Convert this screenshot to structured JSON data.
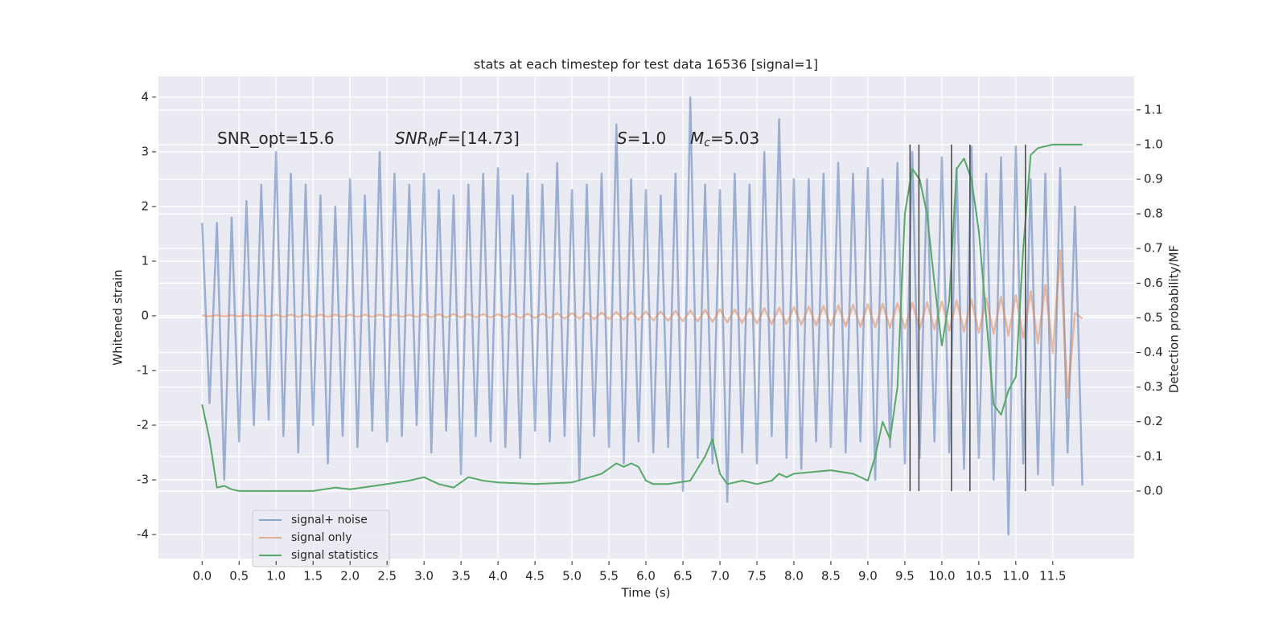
{
  "chart_data": {
    "type": "line",
    "title": "stats at each timestep for test data 16536 [signal=1]",
    "xlabel": "Time (s)",
    "ylabel": "Whitened strain",
    "y2label": "Detection probability/MF",
    "xlim": [
      -0.59,
      12.6
    ],
    "ylim": [
      -4.44,
      4.38
    ],
    "y2lim": [
      -0.195,
      1.197
    ],
    "xticks": [
      {
        "value": 0,
        "label": "0.0"
      },
      0.5,
      {
        "value": 1,
        "label": "1.0"
      },
      1.5,
      {
        "value": 2,
        "label": "2.0"
      },
      2.5,
      {
        "value": 3,
        "label": "3.0"
      },
      3.5,
      {
        "value": 4,
        "label": "4.0"
      },
      4.5,
      {
        "value": 5,
        "label": "5.0"
      },
      5.5,
      {
        "value": 6,
        "label": "6.0"
      },
      6.5,
      {
        "value": 7,
        "label": "7.0"
      },
      7.5,
      {
        "value": 8,
        "label": "8.0"
      },
      8.5,
      {
        "value": 9,
        "label": "9.0"
      },
      9.5,
      {
        "value": 10,
        "label": "10.0"
      },
      10.5,
      {
        "value": 11,
        "label": "11.0"
      },
      11.5
    ],
    "yticks": [
      -4,
      -3,
      -2,
      -1,
      0,
      1,
      2,
      3,
      4
    ],
    "y2ticks": [
      {
        "value": 0,
        "label": "0.0"
      },
      0.1,
      0.2,
      0.3,
      0.4,
      0.5,
      0.6,
      0.7,
      0.8,
      0.9,
      {
        "value": 1,
        "label": "1.0"
      },
      1.1
    ],
    "grid": true,
    "legend": "lower left",
    "x": [
      0,
      0.1,
      0.2,
      0.3,
      0.4,
      0.5,
      0.6,
      0.7,
      0.8,
      0.9,
      1,
      1.1,
      1.2,
      1.3,
      1.4,
      1.5,
      1.6,
      1.7,
      1.8,
      1.9,
      2,
      2.1,
      2.2,
      2.3,
      2.4,
      2.5,
      2.6,
      2.7,
      2.8,
      2.9,
      3,
      3.1,
      3.2,
      3.3,
      3.4,
      3.5,
      3.6,
      3.7,
      3.8,
      3.9,
      4,
      4.1,
      4.2,
      4.3,
      4.4,
      4.5,
      4.6,
      4.7,
      4.8,
      4.9,
      5,
      5.1,
      5.2,
      5.3,
      5.4,
      5.5,
      5.6,
      5.7,
      5.8,
      5.9,
      6,
      6.1,
      6.2,
      6.3,
      6.4,
      6.5,
      6.6,
      6.7,
      6.8,
      6.9,
      7,
      7.1,
      7.2,
      7.3,
      7.4,
      7.5,
      7.6,
      7.7,
      7.8,
      7.9,
      8,
      8.1,
      8.2,
      8.3,
      8.4,
      8.5,
      8.6,
      8.7,
      8.8,
      8.9,
      9,
      9.1,
      9.2,
      9.3,
      9.4,
      9.5,
      9.6,
      9.7,
      9.8,
      9.9,
      10,
      10.1,
      10.2,
      10.3,
      10.4,
      10.5,
      10.6,
      10.7,
      10.8,
      10.9,
      11,
      11.1,
      11.2,
      11.3,
      11.4,
      11.5,
      11.6,
      11.7,
      11.8,
      11.9
    ],
    "series": [
      {
        "name": "signal+ noise",
        "color": "#4c72b0",
        "values": [
          1.7,
          -1.6,
          1.7,
          -3.0,
          1.8,
          -2.3,
          2.1,
          -2.0,
          2.4,
          -1.9,
          3.0,
          -2.2,
          2.6,
          -2.5,
          2.4,
          -2.0,
          2.2,
          -2.7,
          2.0,
          -2.2,
          2.5,
          -2.4,
          2.2,
          -2.1,
          3.0,
          -2.3,
          2.6,
          -2.2,
          2.4,
          -2.0,
          2.6,
          -2.5,
          2.3,
          -2.1,
          2.2,
          -2.9,
          2.4,
          -2.2,
          2.6,
          -2.3,
          2.7,
          -2.4,
          2.2,
          -2.6,
          2.6,
          -2.1,
          2.4,
          -2.3,
          2.8,
          -2.2,
          2.3,
          -3.0,
          2.4,
          -2.2,
          2.6,
          -2.4,
          3.5,
          -2.7,
          2.5,
          -2.3,
          2.3,
          -2.5,
          2.2,
          -2.4,
          2.6,
          -3.2,
          4.0,
          -2.6,
          2.4,
          -2.7,
          2.3,
          -3.4,
          2.6,
          -2.5,
          2.4,
          -2.7,
          3.0,
          -2.2,
          3.6,
          -2.6,
          2.5,
          -2.8,
          2.5,
          -2.3,
          2.6,
          -2.4,
          2.8,
          -2.5,
          2.6,
          -2.3,
          2.7,
          -3.0,
          2.5,
          -2.4,
          2.8,
          -2.7,
          3.0,
          -2.6,
          2.5,
          -2.3,
          2.9,
          -2.5,
          2.7,
          -2.8,
          3.1,
          -2.6,
          2.6,
          -3.0,
          2.9,
          -4.0,
          3.1,
          -2.7,
          2.5,
          -2.9,
          2.6,
          -3.1,
          2.7,
          -2.5,
          2.0,
          -3.1
        ]
      },
      {
        "name": "signal only",
        "color": "#dd8452",
        "values": [
          0.01,
          -0.01,
          0.01,
          -0.01,
          0.01,
          -0.01,
          0.01,
          -0.01,
          0.01,
          -0.01,
          0.02,
          -0.02,
          0.02,
          -0.02,
          0.02,
          -0.02,
          0.02,
          -0.02,
          0.02,
          -0.02,
          0.02,
          -0.02,
          0.02,
          -0.02,
          0.02,
          -0.02,
          0.02,
          -0.02,
          0.02,
          -0.02,
          0.03,
          -0.03,
          0.03,
          -0.03,
          0.03,
          -0.03,
          0.03,
          -0.03,
          0.03,
          -0.03,
          0.03,
          -0.03,
          0.04,
          -0.04,
          0.04,
          -0.04,
          0.04,
          -0.04,
          0.05,
          -0.05,
          0.05,
          -0.05,
          0.06,
          -0.06,
          0.06,
          -0.06,
          0.07,
          -0.07,
          0.07,
          -0.07,
          0.08,
          -0.08,
          0.08,
          -0.09,
          0.09,
          -0.1,
          0.1,
          -0.1,
          0.11,
          -0.11,
          0.12,
          -0.12,
          0.12,
          -0.13,
          0.13,
          -0.14,
          0.14,
          -0.15,
          0.15,
          -0.15,
          0.16,
          -0.16,
          0.17,
          -0.17,
          0.18,
          -0.18,
          0.19,
          -0.19,
          0.2,
          -0.2,
          0.21,
          -0.21,
          0.22,
          -0.22,
          0.23,
          -0.23,
          0.24,
          -0.24,
          0.25,
          -0.25,
          0.26,
          -0.27,
          0.28,
          -0.29,
          0.3,
          -0.31,
          0.32,
          -0.33,
          0.35,
          -0.36,
          0.38,
          -0.41,
          0.45,
          -0.5,
          0.57,
          -0.68,
          1.2,
          -1.5,
          0.05,
          -0.05
        ]
      },
      {
        "name": "signal statistics",
        "color": "#55a868",
        "axis": "y2",
        "x": [
          0,
          0.1,
          0.2,
          0.3,
          0.4,
          0.5,
          1.0,
          1.5,
          1.8,
          2.0,
          2.5,
          2.8,
          3.0,
          3.2,
          3.4,
          3.6,
          3.8,
          4.0,
          4.5,
          5.0,
          5.4,
          5.6,
          5.7,
          5.8,
          5.9,
          6.0,
          6.1,
          6.3,
          6.6,
          6.8,
          6.9,
          7.0,
          7.1,
          7.3,
          7.5,
          7.7,
          7.8,
          7.9,
          8.0,
          8.5,
          8.8,
          9.0,
          9.1,
          9.2,
          9.3,
          9.4,
          9.5,
          9.6,
          9.7,
          9.8,
          9.9,
          10.0,
          10.1,
          10.2,
          10.3,
          10.4,
          10.5,
          10.6,
          10.7,
          10.8,
          10.9,
          11.0,
          11.1,
          11.2,
          11.3,
          11.5,
          11.9
        ],
        "values": [
          0.25,
          0.15,
          0.01,
          0.015,
          0.005,
          0.0,
          0.0,
          0.0,
          0.01,
          0.005,
          0.02,
          0.03,
          0.04,
          0.02,
          0.01,
          0.04,
          0.03,
          0.025,
          0.02,
          0.025,
          0.05,
          0.08,
          0.07,
          0.08,
          0.07,
          0.03,
          0.02,
          0.02,
          0.03,
          0.1,
          0.15,
          0.05,
          0.02,
          0.03,
          0.02,
          0.03,
          0.05,
          0.04,
          0.05,
          0.06,
          0.05,
          0.03,
          0.1,
          0.2,
          0.15,
          0.3,
          0.8,
          0.93,
          0.9,
          0.8,
          0.6,
          0.42,
          0.55,
          0.93,
          0.96,
          0.9,
          0.75,
          0.5,
          0.25,
          0.22,
          0.29,
          0.33,
          0.7,
          0.97,
          0.99,
          1.0,
          1.0
        ]
      }
    ],
    "vlines": {
      "x": [
        9.57,
        9.69,
        10.13,
        10.38,
        11.13
      ],
      "range": [
        0,
        1.0
      ],
      "color": "#444444"
    },
    "annotations": [
      [
        {
          "text": "SNR_opt=15.6"
        }
      ],
      [
        {
          "text": "SNR",
          "style": "italic"
        },
        {
          "text": "M",
          "style": "sub"
        },
        {
          "text": "F",
          "style": "italic"
        },
        {
          "text": "=[14.73]"
        }
      ],
      [
        {
          "text": "S",
          "style": "italic"
        },
        {
          "text": "=1.0"
        }
      ],
      [
        {
          "text": "M",
          "style": "italic"
        },
        {
          "text": "c",
          "style": "sub"
        },
        {
          "text": "=5.03"
        }
      ]
    ]
  }
}
